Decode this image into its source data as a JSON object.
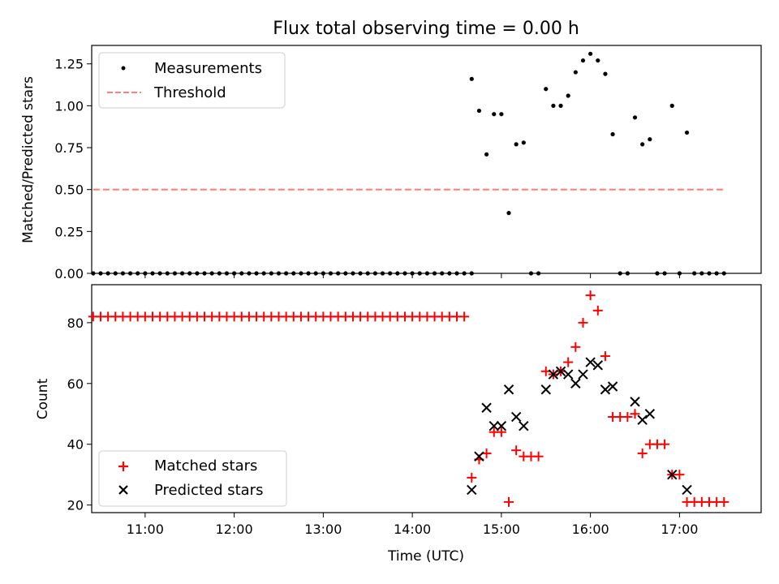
{
  "figure_title": "Flux total observing time = 0.00 h",
  "chart_data": [
    {
      "type": "scatter",
      "panel": "top",
      "ylabel": "Matched/Predicted stars",
      "xlabel": "",
      "ylim": [
        0,
        1.36
      ],
      "yticks": [
        0.0,
        0.25,
        0.5,
        0.75,
        1.0,
        1.25
      ],
      "ytick_labels": [
        "0.00",
        "0.25",
        "0.50",
        "0.75",
        "1.00",
        "1.25"
      ],
      "xlim": [
        "10:24",
        "17:55"
      ],
      "xticks": [
        "11:00",
        "12:00",
        "13:00",
        "14:00",
        "15:00",
        "16:00",
        "17:00"
      ],
      "legend_position": "upper left",
      "series": [
        {
          "name": "Measurements",
          "style": "dot",
          "color": "#000000",
          "points": [
            [
              "10:25",
              0
            ],
            [
              "10:30",
              0
            ],
            [
              "10:35",
              0
            ],
            [
              "10:40",
              0
            ],
            [
              "10:45",
              0
            ],
            [
              "10:50",
              0
            ],
            [
              "10:55",
              0
            ],
            [
              "11:00",
              0
            ],
            [
              "11:05",
              0
            ],
            [
              "11:10",
              0
            ],
            [
              "11:15",
              0
            ],
            [
              "11:20",
              0
            ],
            [
              "11:25",
              0
            ],
            [
              "11:30",
              0
            ],
            [
              "11:35",
              0
            ],
            [
              "11:40",
              0
            ],
            [
              "11:45",
              0
            ],
            [
              "11:50",
              0
            ],
            [
              "11:55",
              0
            ],
            [
              "12:00",
              0
            ],
            [
              "12:05",
              0
            ],
            [
              "12:10",
              0
            ],
            [
              "12:15",
              0
            ],
            [
              "12:20",
              0
            ],
            [
              "12:25",
              0
            ],
            [
              "12:30",
              0
            ],
            [
              "12:35",
              0
            ],
            [
              "12:40",
              0
            ],
            [
              "12:45",
              0
            ],
            [
              "12:50",
              0
            ],
            [
              "12:55",
              0
            ],
            [
              "13:00",
              0
            ],
            [
              "13:05",
              0
            ],
            [
              "13:10",
              0
            ],
            [
              "13:15",
              0
            ],
            [
              "13:20",
              0
            ],
            [
              "13:25",
              0
            ],
            [
              "13:30",
              0
            ],
            [
              "13:35",
              0
            ],
            [
              "13:40",
              0
            ],
            [
              "13:45",
              0
            ],
            [
              "13:50",
              0
            ],
            [
              "13:55",
              0
            ],
            [
              "14:00",
              0
            ],
            [
              "14:05",
              0
            ],
            [
              "14:10",
              0
            ],
            [
              "14:15",
              0
            ],
            [
              "14:20",
              0
            ],
            [
              "14:25",
              0
            ],
            [
              "14:30",
              0
            ],
            [
              "14:35",
              0
            ],
            [
              "14:40",
              0
            ],
            [
              "14:40",
              1.16
            ],
            [
              "14:45",
              0.97
            ],
            [
              "14:50",
              0.71
            ],
            [
              "14:55",
              0.95
            ],
            [
              "15:00",
              0.95
            ],
            [
              "15:05",
              0.36
            ],
            [
              "15:10",
              0.77
            ],
            [
              "15:15",
              0.78
            ],
            [
              "15:20",
              0
            ],
            [
              "15:25",
              0
            ],
            [
              "15:30",
              1.1
            ],
            [
              "15:35",
              1.0
            ],
            [
              "15:40",
              1.0
            ],
            [
              "15:45",
              1.06
            ],
            [
              "15:50",
              1.2
            ],
            [
              "15:55",
              1.27
            ],
            [
              "16:00",
              1.31
            ],
            [
              "16:05",
              1.27
            ],
            [
              "16:10",
              1.19
            ],
            [
              "16:15",
              0.83
            ],
            [
              "16:20",
              0
            ],
            [
              "16:25",
              0
            ],
            [
              "16:30",
              0.93
            ],
            [
              "16:35",
              0.77
            ],
            [
              "16:40",
              0.8
            ],
            [
              "16:45",
              0
            ],
            [
              "16:50",
              0
            ],
            [
              "16:55",
              1.0
            ],
            [
              "17:00",
              0
            ],
            [
              "17:05",
              0.84
            ],
            [
              "17:10",
              0
            ],
            [
              "17:15",
              0
            ],
            [
              "17:20",
              0
            ],
            [
              "17:25",
              0
            ],
            [
              "17:30",
              0
            ]
          ]
        },
        {
          "name": "Threshold",
          "style": "dashed-line",
          "color": "#ff7f7f",
          "points": [
            [
              "10:25",
              0.5
            ],
            [
              "17:30",
              0.5
            ]
          ]
        }
      ]
    },
    {
      "type": "scatter",
      "panel": "bottom",
      "ylabel": "Count",
      "xlabel": "Time (UTC)",
      "ylim": [
        17.5,
        92.5
      ],
      "yticks": [
        20,
        40,
        60,
        80
      ],
      "ytick_labels": [
        "20",
        "40",
        "60",
        "80"
      ],
      "xlim": [
        "10:24",
        "17:55"
      ],
      "xticks": [
        "11:00",
        "12:00",
        "13:00",
        "14:00",
        "15:00",
        "16:00",
        "17:00"
      ],
      "xtick_labels": [
        "11:00",
        "12:00",
        "13:00",
        "14:00",
        "15:00",
        "16:00",
        "17:00"
      ],
      "legend_position": "lower left",
      "series": [
        {
          "name": "Matched stars",
          "style": "plus",
          "color": "#ff0000",
          "points": [
            [
              "10:25",
              82
            ],
            [
              "10:30",
              82
            ],
            [
              "10:35",
              82
            ],
            [
              "10:40",
              82
            ],
            [
              "10:45",
              82
            ],
            [
              "10:50",
              82
            ],
            [
              "10:55",
              82
            ],
            [
              "11:00",
              82
            ],
            [
              "11:05",
              82
            ],
            [
              "11:10",
              82
            ],
            [
              "11:15",
              82
            ],
            [
              "11:20",
              82
            ],
            [
              "11:25",
              82
            ],
            [
              "11:30",
              82
            ],
            [
              "11:35",
              82
            ],
            [
              "11:40",
              82
            ],
            [
              "11:45",
              82
            ],
            [
              "11:50",
              82
            ],
            [
              "11:55",
              82
            ],
            [
              "12:00",
              82
            ],
            [
              "12:05",
              82
            ],
            [
              "12:10",
              82
            ],
            [
              "12:15",
              82
            ],
            [
              "12:20",
              82
            ],
            [
              "12:25",
              82
            ],
            [
              "12:30",
              82
            ],
            [
              "12:35",
              82
            ],
            [
              "12:40",
              82
            ],
            [
              "12:45",
              82
            ],
            [
              "12:50",
              82
            ],
            [
              "12:55",
              82
            ],
            [
              "13:00",
              82
            ],
            [
              "13:05",
              82
            ],
            [
              "13:10",
              82
            ],
            [
              "13:15",
              82
            ],
            [
              "13:20",
              82
            ],
            [
              "13:25",
              82
            ],
            [
              "13:30",
              82
            ],
            [
              "13:35",
              82
            ],
            [
              "13:40",
              82
            ],
            [
              "13:45",
              82
            ],
            [
              "13:50",
              82
            ],
            [
              "13:55",
              82
            ],
            [
              "14:00",
              82
            ],
            [
              "14:05",
              82
            ],
            [
              "14:10",
              82
            ],
            [
              "14:15",
              82
            ],
            [
              "14:20",
              82
            ],
            [
              "14:25",
              82
            ],
            [
              "14:30",
              82
            ],
            [
              "14:35",
              82
            ],
            [
              "14:40",
              29
            ],
            [
              "14:45",
              35
            ],
            [
              "14:50",
              37
            ],
            [
              "14:55",
              44
            ],
            [
              "15:00",
              44
            ],
            [
              "15:05",
              21
            ],
            [
              "15:10",
              38
            ],
            [
              "15:15",
              36
            ],
            [
              "15:20",
              36
            ],
            [
              "15:25",
              36
            ],
            [
              "15:30",
              64
            ],
            [
              "15:35",
              63
            ],
            [
              "15:40",
              64
            ],
            [
              "15:45",
              67
            ],
            [
              "15:50",
              72
            ],
            [
              "15:55",
              80
            ],
            [
              "16:00",
              89
            ],
            [
              "16:05",
              84
            ],
            [
              "16:10",
              69
            ],
            [
              "16:15",
              49
            ],
            [
              "16:20",
              49
            ],
            [
              "16:25",
              49
            ],
            [
              "16:30",
              50
            ],
            [
              "16:35",
              37
            ],
            [
              "16:40",
              40
            ],
            [
              "16:45",
              40
            ],
            [
              "16:50",
              40
            ],
            [
              "16:55",
              30
            ],
            [
              "17:00",
              30
            ],
            [
              "17:05",
              21
            ],
            [
              "17:10",
              21
            ],
            [
              "17:15",
              21
            ],
            [
              "17:20",
              21
            ],
            [
              "17:25",
              21
            ],
            [
              "17:30",
              21
            ]
          ]
        },
        {
          "name": "Predicted stars",
          "style": "x",
          "color": "#000000",
          "points": [
            [
              "14:40",
              25
            ],
            [
              "14:45",
              36
            ],
            [
              "14:50",
              52
            ],
            [
              "14:55",
              46
            ],
            [
              "15:00",
              46
            ],
            [
              "15:05",
              58
            ],
            [
              "15:10",
              49
            ],
            [
              "15:15",
              46
            ],
            [
              "15:30",
              58
            ],
            [
              "15:35",
              63
            ],
            [
              "15:40",
              64
            ],
            [
              "15:45",
              63
            ],
            [
              "15:50",
              60
            ],
            [
              "15:55",
              63
            ],
            [
              "16:00",
              67
            ],
            [
              "16:05",
              66
            ],
            [
              "16:10",
              58
            ],
            [
              "16:15",
              59
            ],
            [
              "16:30",
              54
            ],
            [
              "16:35",
              48
            ],
            [
              "16:40",
              50
            ],
            [
              "16:55",
              30
            ],
            [
              "17:05",
              25
            ]
          ]
        }
      ]
    }
  ]
}
